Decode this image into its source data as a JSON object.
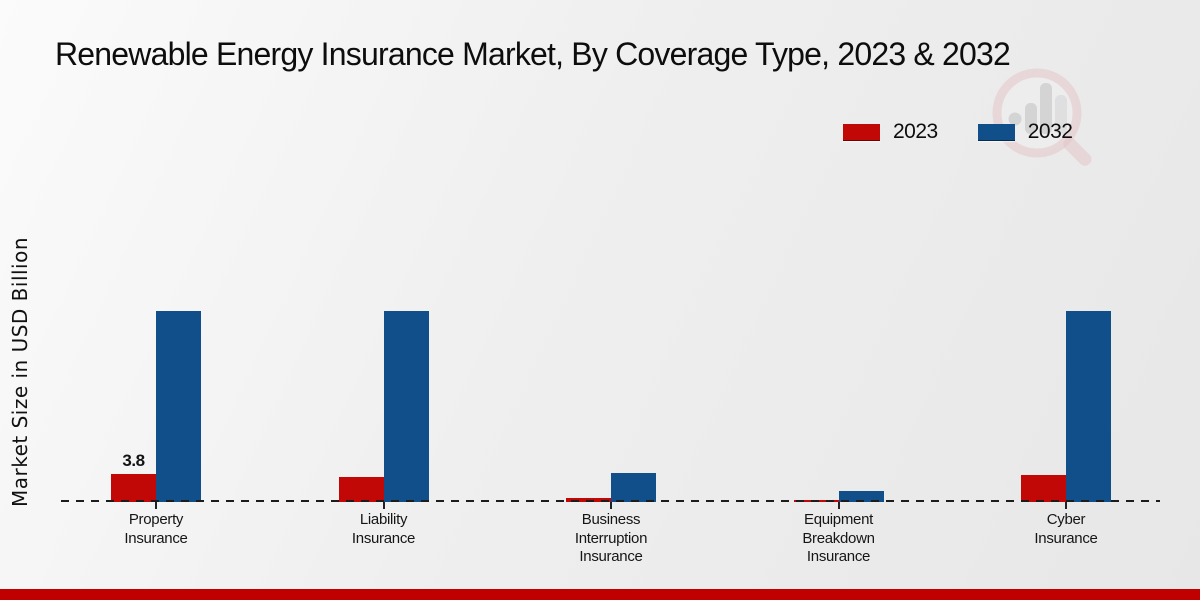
{
  "page": {
    "title": "Renewable Energy Insurance Market, By Coverage Type, 2023 & 2032"
  },
  "chart_data": {
    "type": "bar",
    "title": "Renewable Energy Insurance Market, By Coverage Type, 2023 & 2032",
    "ylabel": "Market Size in USD Billion",
    "units": "USD Billion",
    "categories": [
      "Property Insurance",
      "Liability Insurance",
      "Business Interruption Insurance",
      "Equipment Breakdown Insurance",
      "Cyber Insurance"
    ],
    "series": [
      {
        "name": "2023",
        "color": "#c20707",
        "values": [
          3.8,
          3.4,
          0.5,
          0.3,
          3.6
        ],
        "point_labels": [
          "3.8",
          "",
          "",
          "",
          ""
        ]
      },
      {
        "name": "2032",
        "color": "#114f8a",
        "values": [
          25.9,
          25.9,
          3.9,
          1.5,
          25.9
        ],
        "point_labels": [
          "",
          "",
          "",
          "",
          ""
        ]
      }
    ],
    "ylim": [
      0,
      28
    ],
    "grid": false,
    "legend_position": "top-right",
    "axis_baseline": "dashed"
  },
  "footer": {
    "accent_color": "#c00000"
  }
}
